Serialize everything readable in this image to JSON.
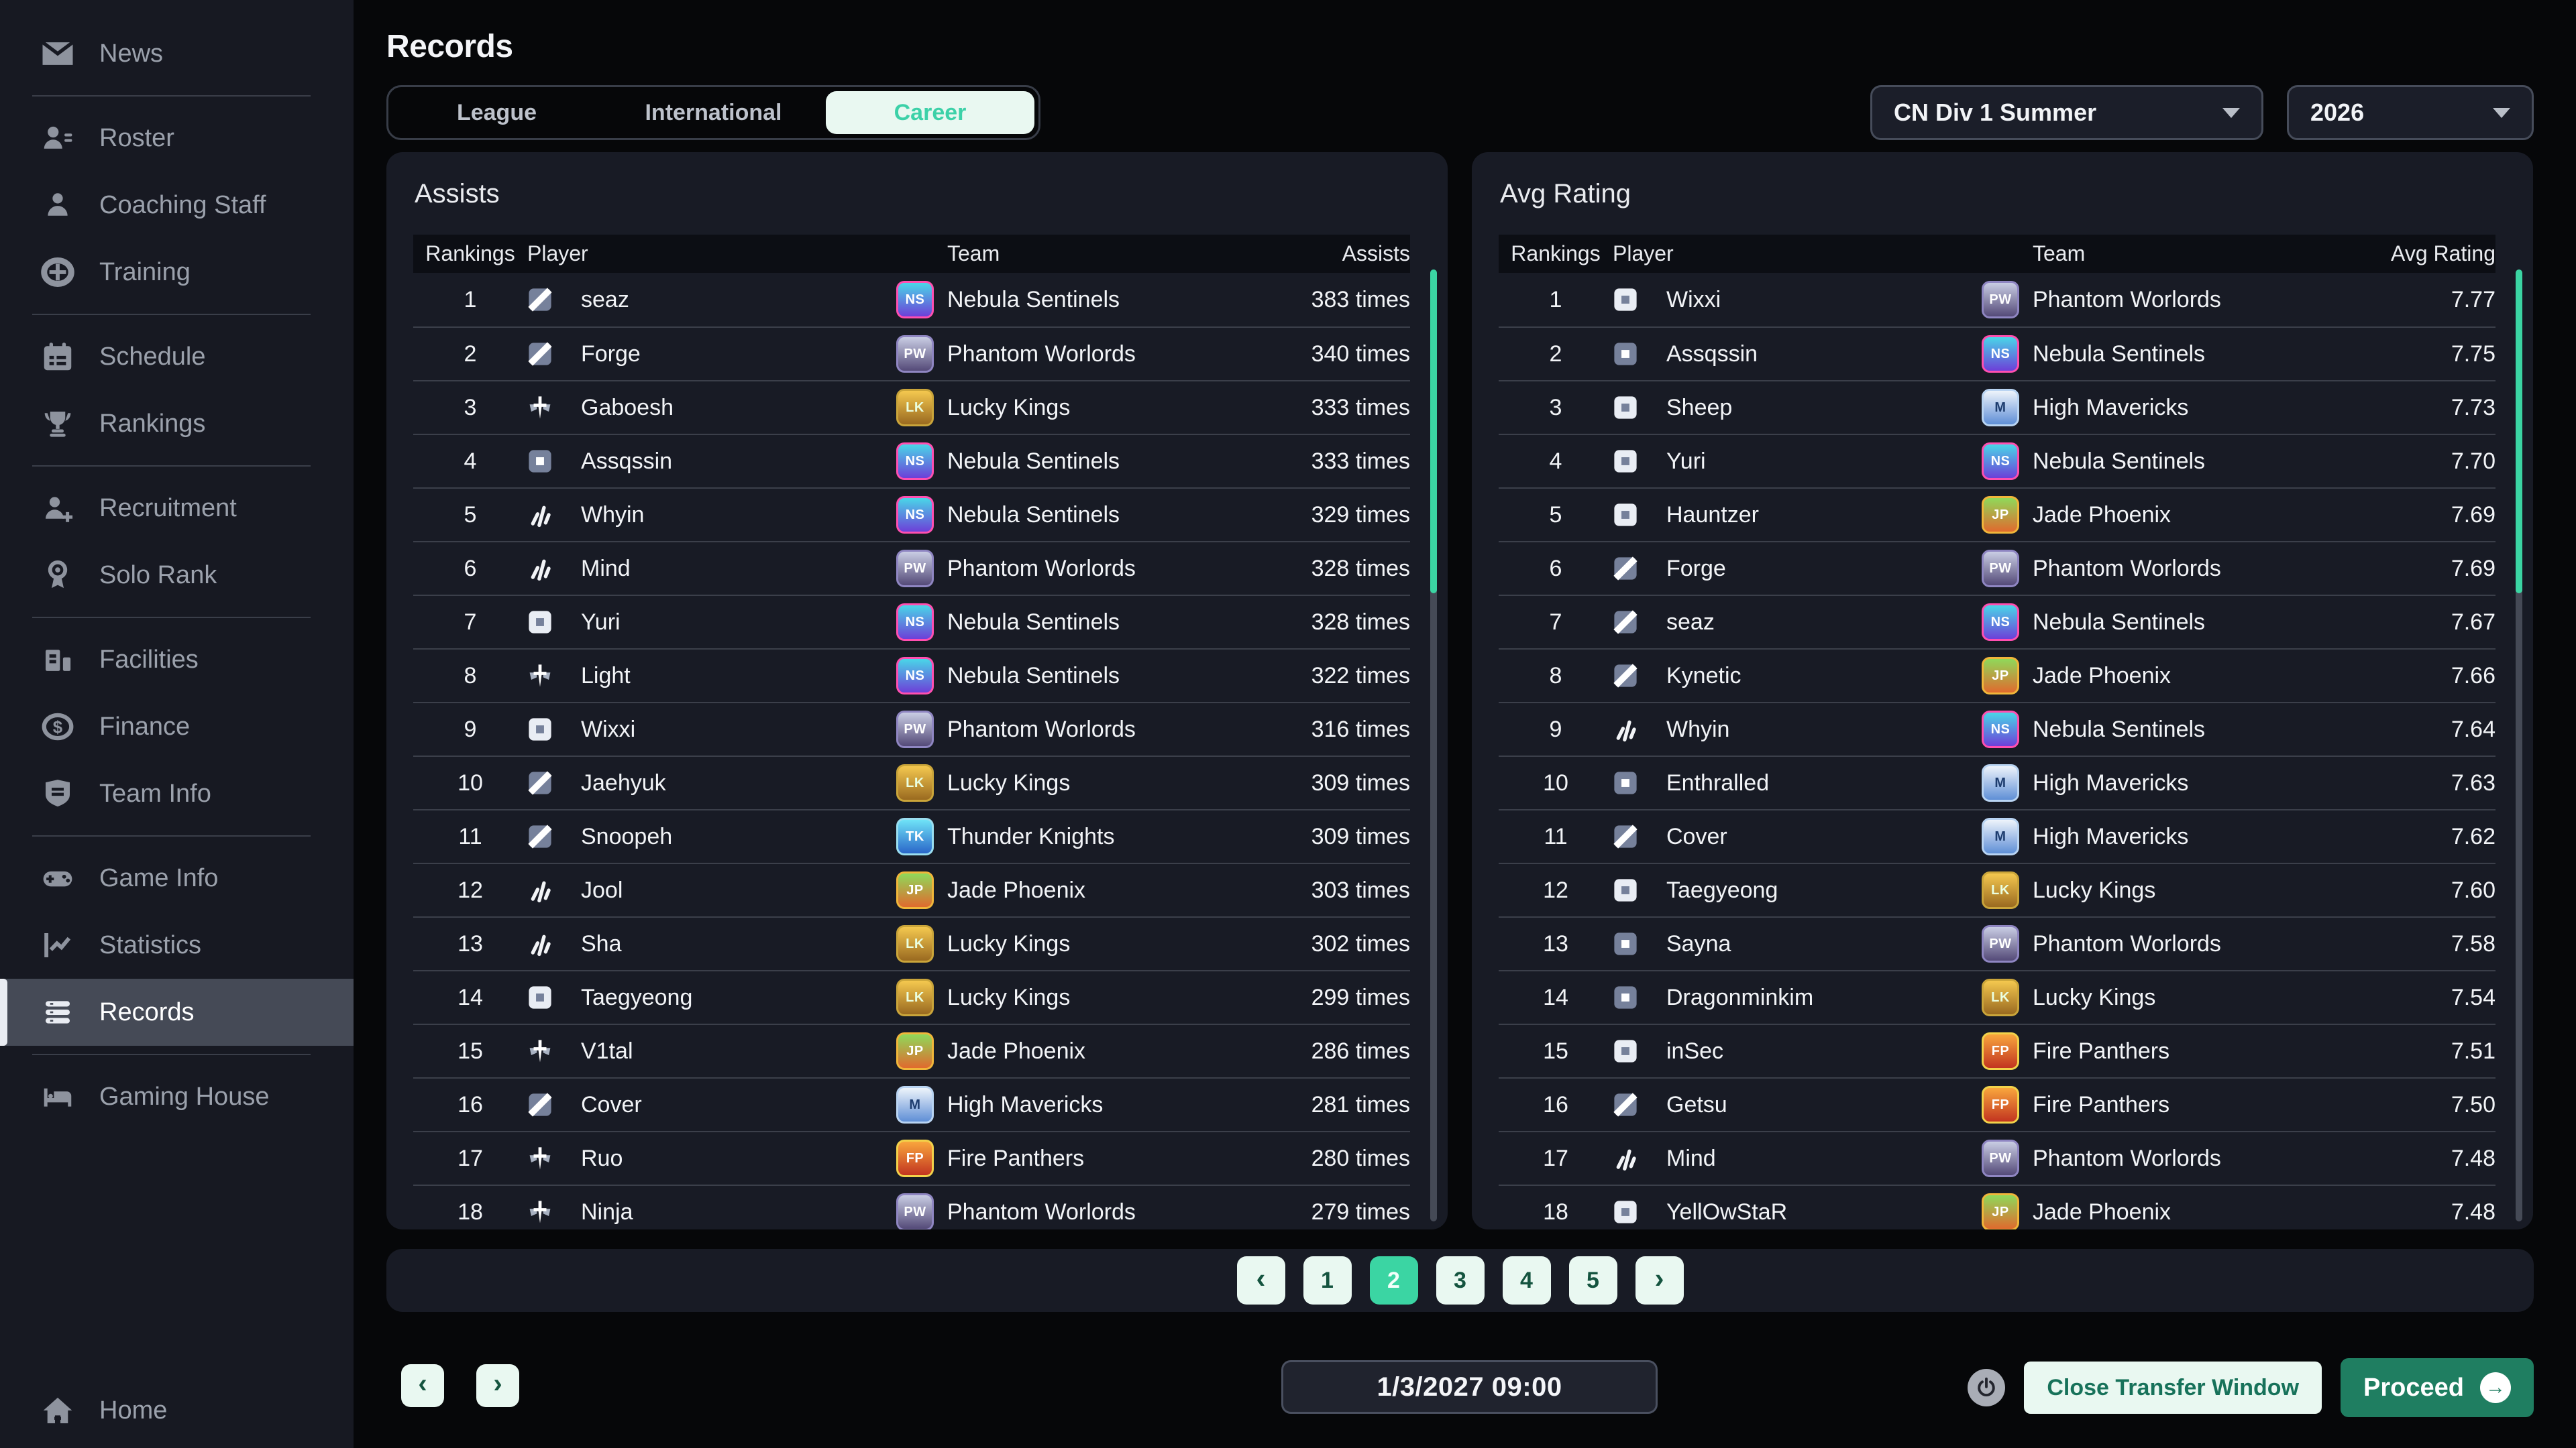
{
  "colors": {
    "accent_teal": "#3bd5a3",
    "teal_text": "#3cd1a8",
    "teal_dark": "#17725a",
    "mint": "#e9f8f1",
    "green_button": "#1f7e61",
    "page_bg": "#060709",
    "sidebar_bg": "#171922",
    "card_bg": "#181b25"
  },
  "sidebar": {
    "items": [
      {
        "label": "News",
        "icon": "news-icon"
      },
      {
        "label": "Roster",
        "icon": "roster-icon"
      },
      {
        "label": "Coaching Staff",
        "icon": "coach-icon"
      },
      {
        "label": "Training",
        "icon": "training-icon"
      },
      {
        "label": "Schedule",
        "icon": "schedule-icon"
      },
      {
        "label": "Rankings",
        "icon": "trophy-icon"
      },
      {
        "label": "Recruitment",
        "icon": "recruit-icon"
      },
      {
        "label": "Solo Rank",
        "icon": "medal-icon"
      },
      {
        "label": "Facilities",
        "icon": "building-icon"
      },
      {
        "label": "Finance",
        "icon": "coin-icon"
      },
      {
        "label": "Team Info",
        "icon": "shield-icon"
      },
      {
        "label": "Game Info",
        "icon": "gamepad-icon"
      },
      {
        "label": "Statistics",
        "icon": "chart-icon"
      },
      {
        "label": "Records",
        "icon": "records-icon",
        "active": true
      },
      {
        "label": "Gaming House",
        "icon": "bed-icon"
      }
    ],
    "home": {
      "label": "Home",
      "icon": "home-icon"
    }
  },
  "header": {
    "title": "Records",
    "tabs": [
      {
        "label": "League",
        "active": false
      },
      {
        "label": "International",
        "active": false
      },
      {
        "label": "Career",
        "active": true
      }
    ],
    "dropdowns": [
      {
        "value": "CN Div 1 Summer"
      },
      {
        "value": "2026"
      }
    ]
  },
  "tables": [
    {
      "title": "Assists",
      "columns": [
        "Rankings",
        "Player",
        "Team",
        "Assists"
      ],
      "scrollbar_thumb_pct": 34,
      "rows": [
        {
          "rank": "1",
          "player": "seaz",
          "role": "top",
          "team": "Nebula Sentinels",
          "value": "383 times"
        },
        {
          "rank": "2",
          "player": "Forge",
          "role": "top",
          "team": "Phantom Worlords",
          "value": "340 times"
        },
        {
          "rank": "3",
          "player": "Gaboesh",
          "role": "support",
          "team": "Lucky Kings",
          "value": "333 times"
        },
        {
          "rank": "4",
          "player": "Assqssin",
          "role": "mid",
          "team": "Nebula Sentinels",
          "value": "333 times"
        },
        {
          "rank": "5",
          "player": "Whyin",
          "role": "jungle",
          "team": "Nebula Sentinels",
          "value": "329 times"
        },
        {
          "rank": "6",
          "player": "Mind",
          "role": "jungle",
          "team": "Phantom Worlords",
          "value": "328 times"
        },
        {
          "rank": "7",
          "player": "Yuri",
          "role": "bot",
          "team": "Nebula Sentinels",
          "value": "328 times"
        },
        {
          "rank": "8",
          "player": "Light",
          "role": "support",
          "team": "Nebula Sentinels",
          "value": "322 times"
        },
        {
          "rank": "9",
          "player": "Wixxi",
          "role": "bot",
          "team": "Phantom Worlords",
          "value": "316 times"
        },
        {
          "rank": "10",
          "player": "Jaehyuk",
          "role": "top",
          "team": "Lucky Kings",
          "value": "309 times"
        },
        {
          "rank": "11",
          "player": "Snoopeh",
          "role": "top",
          "team": "Thunder Knights",
          "value": "309 times"
        },
        {
          "rank": "12",
          "player": "Jool",
          "role": "jungle",
          "team": "Jade Phoenix",
          "value": "303 times"
        },
        {
          "rank": "13",
          "player": "Sha",
          "role": "jungle",
          "team": "Lucky Kings",
          "value": "302 times"
        },
        {
          "rank": "14",
          "player": "Taegyeong",
          "role": "bot",
          "team": "Lucky Kings",
          "value": "299 times"
        },
        {
          "rank": "15",
          "player": "V1tal",
          "role": "support",
          "team": "Jade Phoenix",
          "value": "286 times"
        },
        {
          "rank": "16",
          "player": "Cover",
          "role": "top",
          "team": "High Mavericks",
          "value": "281 times"
        },
        {
          "rank": "17",
          "player": "Ruo",
          "role": "support",
          "team": "Fire Panthers",
          "value": "280 times"
        },
        {
          "rank": "18",
          "player": "Ninja",
          "role": "support",
          "team": "Phantom Worlords",
          "value": "279 times"
        }
      ]
    },
    {
      "title": "Avg Rating",
      "columns": [
        "Rankings",
        "Player",
        "Team",
        "Avg Rating"
      ],
      "scrollbar_thumb_pct": 34,
      "rows": [
        {
          "rank": "1",
          "player": "Wixxi",
          "role": "bot",
          "team": "Phantom Worlords",
          "value": "7.77"
        },
        {
          "rank": "2",
          "player": "Assqssin",
          "role": "mid",
          "team": "Nebula Sentinels",
          "value": "7.75"
        },
        {
          "rank": "3",
          "player": "Sheep",
          "role": "bot",
          "team": "High Mavericks",
          "value": "7.73"
        },
        {
          "rank": "4",
          "player": "Yuri",
          "role": "bot",
          "team": "Nebula Sentinels",
          "value": "7.70"
        },
        {
          "rank": "5",
          "player": "Hauntzer",
          "role": "bot",
          "team": "Jade Phoenix",
          "value": "7.69"
        },
        {
          "rank": "6",
          "player": "Forge",
          "role": "top",
          "team": "Phantom Worlords",
          "value": "7.69"
        },
        {
          "rank": "7",
          "player": "seaz",
          "role": "top",
          "team": "Nebula Sentinels",
          "value": "7.67"
        },
        {
          "rank": "8",
          "player": "Kynetic",
          "role": "top",
          "team": "Jade Phoenix",
          "value": "7.66"
        },
        {
          "rank": "9",
          "player": "Whyin",
          "role": "jungle",
          "team": "Nebula Sentinels",
          "value": "7.64"
        },
        {
          "rank": "10",
          "player": "Enthralled",
          "role": "mid",
          "team": "High Mavericks",
          "value": "7.63"
        },
        {
          "rank": "11",
          "player": "Cover",
          "role": "top",
          "team": "High Mavericks",
          "value": "7.62"
        },
        {
          "rank": "12",
          "player": "Taegyeong",
          "role": "bot",
          "team": "Lucky Kings",
          "value": "7.60"
        },
        {
          "rank": "13",
          "player": "Sayna",
          "role": "mid",
          "team": "Phantom Worlords",
          "value": "7.58"
        },
        {
          "rank": "14",
          "player": "Dragonminkim",
          "role": "mid",
          "team": "Lucky Kings",
          "value": "7.54"
        },
        {
          "rank": "15",
          "player": "inSec",
          "role": "bot",
          "team": "Fire Panthers",
          "value": "7.51"
        },
        {
          "rank": "16",
          "player": "Getsu",
          "role": "top",
          "team": "Fire Panthers",
          "value": "7.50"
        },
        {
          "rank": "17",
          "player": "Mind",
          "role": "jungle",
          "team": "Phantom Worlords",
          "value": "7.48"
        },
        {
          "rank": "18",
          "player": "YellOwStaR",
          "role": "bot",
          "team": "Jade Phoenix",
          "value": "7.48"
        }
      ]
    }
  ],
  "teams": {
    "Nebula Sentinels": {
      "initials": "NS",
      "c1": "#49d6e8",
      "c2": "#6d3fd8",
      "ring": "#ff4fb0",
      "fg": "#ffffff"
    },
    "Phantom Worlords": {
      "initials": "PW",
      "c1": "#c9cde4",
      "c2": "#544a78",
      "ring": "#8f86c2",
      "fg": "#ffffff"
    },
    "Lucky Kings": {
      "initials": "LK",
      "c1": "#f4c84f",
      "c2": "#9a6a20",
      "ring": "#caa53a",
      "fg": "#eaffe0"
    },
    "Thunder Knights": {
      "initials": "TK",
      "c1": "#6fe3f7",
      "c2": "#2a66c9",
      "ring": "#9adef0",
      "fg": "#ffffff"
    },
    "Jade Phoenix": {
      "initials": "JP",
      "c1": "#8fd95a",
      "c2": "#e06a2e",
      "ring": "#f0b63a",
      "fg": "#ffffff"
    },
    "High Mavericks": {
      "initials": "M",
      "c1": "#eef4fb",
      "c2": "#5f8fd6",
      "ring": "#b9d4f2",
      "fg": "#1d3c6e"
    },
    "Fire Panthers": {
      "initials": "FP",
      "c1": "#f9a63d",
      "c2": "#c23420",
      "ring": "#f2d24a",
      "fg": "#ffffff"
    }
  },
  "pagination": {
    "prev": "‹",
    "pages": [
      "1",
      "2",
      "3",
      "4",
      "5"
    ],
    "active": "2",
    "next": "›"
  },
  "footer": {
    "prev": "‹",
    "next": "›",
    "datetime": "1/3/2027 09:00",
    "close_button": "Close Transfer Window",
    "proceed_button": "Proceed",
    "proceed_arrow": "→"
  }
}
